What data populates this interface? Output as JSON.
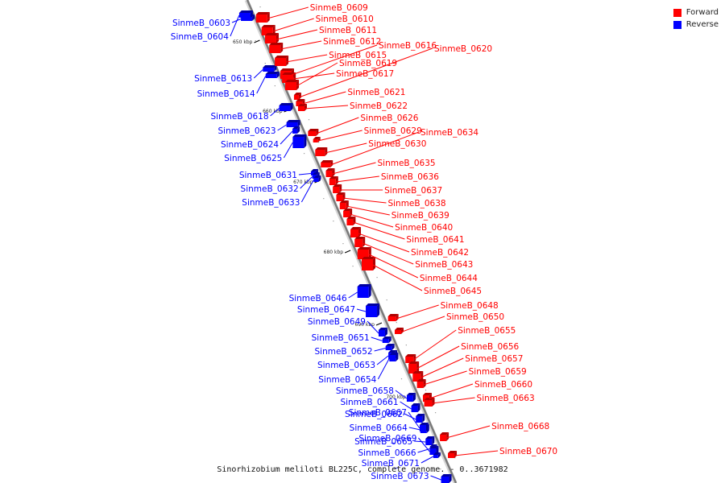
{
  "legend": {
    "forward": {
      "label": "Forward",
      "color": "#ff0000"
    },
    "reverse": {
      "label": "Reverse",
      "color": "#0000ff"
    }
  },
  "caption": "Sinorhizobium meliloti BL225C, complete genome. - 0..3671982",
  "ticks": [
    "650 kbp",
    "660 kbp",
    "670 kbp",
    "680 kbp",
    "690 kbp",
    "700 kbp"
  ],
  "genes": [
    {
      "name": "SinmeB_0603",
      "strand": "reverse"
    },
    {
      "name": "SinmeB_0604",
      "strand": "reverse"
    },
    {
      "name": "SinmeB_0609",
      "strand": "forward"
    },
    {
      "name": "SinmeB_0610",
      "strand": "forward"
    },
    {
      "name": "SinmeB_0611",
      "strand": "forward"
    },
    {
      "name": "SinmeB_0612",
      "strand": "forward"
    },
    {
      "name": "SinmeB_0613",
      "strand": "reverse"
    },
    {
      "name": "SinmeB_0614",
      "strand": "reverse"
    },
    {
      "name": "SinmeB_0615",
      "strand": "forward"
    },
    {
      "name": "SinmeB_0616",
      "strand": "forward"
    },
    {
      "name": "SinmeB_0617",
      "strand": "forward"
    },
    {
      "name": "SinmeB_0618",
      "strand": "reverse"
    },
    {
      "name": "SinmeB_0619",
      "strand": "forward"
    },
    {
      "name": "SinmeB_0620",
      "strand": "forward"
    },
    {
      "name": "SinmeB_0621",
      "strand": "forward"
    },
    {
      "name": "SinmeB_0622",
      "strand": "forward"
    },
    {
      "name": "SinmeB_0623",
      "strand": "reverse"
    },
    {
      "name": "SinmeB_0624",
      "strand": "reverse"
    },
    {
      "name": "SinmeB_0625",
      "strand": "reverse"
    },
    {
      "name": "SinmeB_0626",
      "strand": "forward"
    },
    {
      "name": "SinmeB_0629",
      "strand": "forward"
    },
    {
      "name": "SinmeB_0630",
      "strand": "forward"
    },
    {
      "name": "SinmeB_0631",
      "strand": "reverse"
    },
    {
      "name": "SinmeB_0632",
      "strand": "reverse"
    },
    {
      "name": "SinmeB_0633",
      "strand": "reverse"
    },
    {
      "name": "SinmeB_0634",
      "strand": "forward"
    },
    {
      "name": "SinmeB_0635",
      "strand": "forward"
    },
    {
      "name": "SinmeB_0636",
      "strand": "forward"
    },
    {
      "name": "SinmeB_0637",
      "strand": "forward"
    },
    {
      "name": "SinmeB_0638",
      "strand": "forward"
    },
    {
      "name": "SinmeB_0639",
      "strand": "forward"
    },
    {
      "name": "SinmeB_0640",
      "strand": "forward"
    },
    {
      "name": "SinmeB_0641",
      "strand": "forward"
    },
    {
      "name": "SinmeB_0642",
      "strand": "forward"
    },
    {
      "name": "SinmeB_0643",
      "strand": "forward"
    },
    {
      "name": "SinmeB_0644",
      "strand": "forward"
    },
    {
      "name": "SinmeB_0645",
      "strand": "forward"
    },
    {
      "name": "SinmeB_0646",
      "strand": "reverse"
    },
    {
      "name": "SinmeB_0647",
      "strand": "reverse"
    },
    {
      "name": "SinmeB_0648",
      "strand": "forward"
    },
    {
      "name": "SinmeB_0649",
      "strand": "reverse"
    },
    {
      "name": "SinmeB_0650",
      "strand": "forward"
    },
    {
      "name": "SinmeB_0651",
      "strand": "reverse"
    },
    {
      "name": "SinmeB_0652",
      "strand": "reverse"
    },
    {
      "name": "SinmeB_0653",
      "strand": "reverse"
    },
    {
      "name": "SinmeB_0654",
      "strand": "reverse"
    },
    {
      "name": "SinmeB_0655",
      "strand": "forward"
    },
    {
      "name": "SinmeB_0656",
      "strand": "forward"
    },
    {
      "name": "SinmeB_0657",
      "strand": "forward"
    },
    {
      "name": "SinmeB_0658",
      "strand": "reverse"
    },
    {
      "name": "SinmeB_0659",
      "strand": "forward"
    },
    {
      "name": "SinmeB_0660",
      "strand": "forward"
    },
    {
      "name": "SinmeB_0661",
      "strand": "reverse"
    },
    {
      "name": "SinmeB_0662",
      "strand": "reverse"
    },
    {
      "name": "SinmeB_0663",
      "strand": "forward"
    },
    {
      "name": "SinmeB_0664",
      "strand": "reverse"
    },
    {
      "name": "SinmeB_0665",
      "strand": "reverse"
    },
    {
      "name": "SinmeB_0666",
      "strand": "reverse"
    },
    {
      "name": "SinmeB_0667",
      "strand": "reverse"
    },
    {
      "name": "SinmeB_0668",
      "strand": "forward"
    },
    {
      "name": "SinmeB_0669",
      "strand": "reverse"
    },
    {
      "name": "SinmeB_0670",
      "strand": "forward"
    },
    {
      "name": "SinmeB_0671",
      "strand": "reverse"
    },
    {
      "name": "SinmeB_0673",
      "strand": "reverse"
    }
  ]
}
